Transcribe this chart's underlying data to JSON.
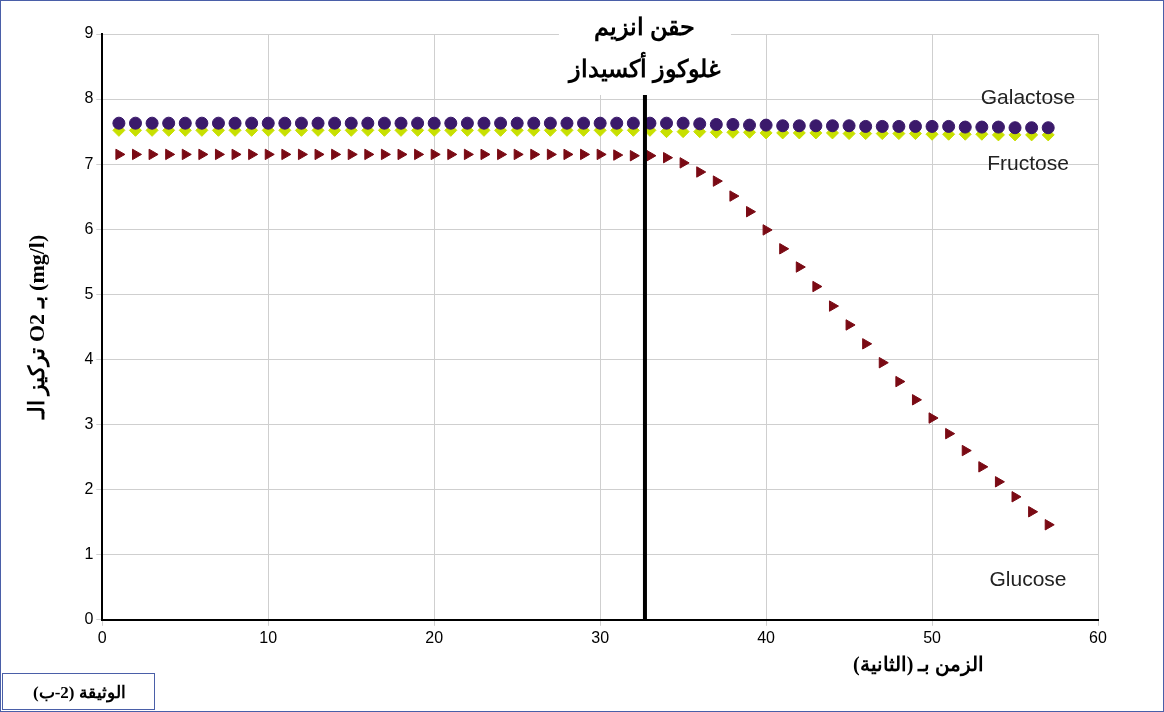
{
  "chart_data": {
    "type": "scatter",
    "xlabel": "الزمن بـ (الثانية)",
    "ylabel": "تركيز الـ O2 بـ (mg/l)",
    "x": [
      1,
      2,
      3,
      4,
      5,
      6,
      7,
      8,
      9,
      10,
      11,
      12,
      13,
      14,
      15,
      16,
      17,
      18,
      19,
      20,
      21,
      22,
      23,
      24,
      25,
      26,
      27,
      28,
      29,
      30,
      31,
      32,
      33,
      34,
      35,
      36,
      37,
      38,
      39,
      40,
      41,
      42,
      43,
      44,
      45,
      46,
      47,
      48,
      49,
      50,
      51,
      52,
      53,
      54,
      55,
      56,
      57
    ],
    "series": [
      {
        "name": "Galactose",
        "color": "#3b1a6b",
        "marker": "circle",
        "values": [
          7.63,
          7.63,
          7.63,
          7.63,
          7.63,
          7.63,
          7.63,
          7.63,
          7.63,
          7.63,
          7.63,
          7.63,
          7.63,
          7.63,
          7.63,
          7.63,
          7.63,
          7.63,
          7.63,
          7.63,
          7.63,
          7.63,
          7.63,
          7.63,
          7.63,
          7.63,
          7.63,
          7.63,
          7.63,
          7.63,
          7.63,
          7.63,
          7.63,
          7.63,
          7.63,
          7.62,
          7.61,
          7.61,
          7.6,
          7.6,
          7.59,
          7.59,
          7.59,
          7.59,
          7.59,
          7.58,
          7.58,
          7.58,
          7.58,
          7.58,
          7.58,
          7.57,
          7.57,
          7.57,
          7.56,
          7.56,
          7.56
        ]
      },
      {
        "name": "Fructose",
        "color": "#c8e000",
        "marker": "diamond",
        "values": [
          7.52,
          7.52,
          7.52,
          7.52,
          7.52,
          7.52,
          7.52,
          7.52,
          7.52,
          7.52,
          7.52,
          7.52,
          7.52,
          7.52,
          7.52,
          7.52,
          7.52,
          7.52,
          7.52,
          7.52,
          7.52,
          7.52,
          7.52,
          7.52,
          7.52,
          7.52,
          7.52,
          7.52,
          7.52,
          7.52,
          7.52,
          7.52,
          7.52,
          7.5,
          7.5,
          7.5,
          7.49,
          7.49,
          7.49,
          7.48,
          7.48,
          7.48,
          7.48,
          7.48,
          7.47,
          7.47,
          7.47,
          7.47,
          7.47,
          7.46,
          7.46,
          7.46,
          7.46,
          7.45,
          7.45,
          7.45,
          7.45
        ]
      },
      {
        "name": "Glucose",
        "color": "#7a0a14",
        "marker": "triangle",
        "values": [
          7.15,
          7.15,
          7.15,
          7.15,
          7.15,
          7.15,
          7.15,
          7.15,
          7.15,
          7.15,
          7.15,
          7.15,
          7.15,
          7.15,
          7.15,
          7.15,
          7.15,
          7.15,
          7.15,
          7.15,
          7.15,
          7.15,
          7.15,
          7.15,
          7.15,
          7.15,
          7.15,
          7.15,
          7.15,
          7.15,
          7.14,
          7.13,
          7.13,
          7.1,
          7.02,
          6.88,
          6.74,
          6.51,
          6.27,
          5.99,
          5.7,
          5.42,
          5.12,
          4.82,
          4.53,
          4.24,
          3.95,
          3.66,
          3.38,
          3.1,
          2.86,
          2.6,
          2.35,
          2.12,
          1.89,
          1.66,
          1.46
        ]
      }
    ],
    "xlim": [
      0,
      60
    ],
    "xticks": [
      0,
      10,
      20,
      30,
      40,
      50,
      60
    ],
    "ylim": [
      0,
      9
    ],
    "yticks": [
      0,
      1,
      2,
      3,
      4,
      5,
      6,
      7,
      8,
      9
    ],
    "grid": true,
    "legend": false,
    "ref_lines": [
      {
        "axis": "x",
        "value": 32.7,
        "label": "حقن انزيم غلوكوز أكسيداز",
        "color": "#000000"
      }
    ],
    "annotations": [
      "الوثيقة (2-ب)"
    ]
  }
}
